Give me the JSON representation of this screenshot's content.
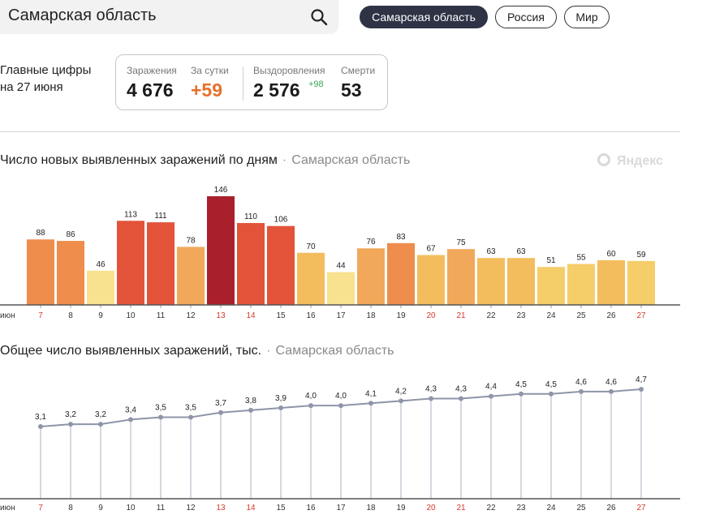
{
  "search": {
    "value": "Самарская область"
  },
  "region_tabs": [
    {
      "label": "Самарская область",
      "active": true
    },
    {
      "label": "Россия",
      "active": false
    },
    {
      "label": "Мир",
      "active": false
    }
  ],
  "summary": {
    "heading_line1": "Главные цифры",
    "heading_line2": "на 27 июня",
    "cases_label": "Заражения",
    "cases_value": "4 676",
    "daily_label": "За сутки",
    "daily_value": "+59",
    "recovered_label": "Выздоровления",
    "recovered_value": "2 576",
    "recovered_delta": "+98",
    "deaths_label": "Смерти",
    "deaths_value": "53"
  },
  "daily_chart": {
    "title": "Число новых выявленных заражений по дням",
    "region": "Самарская область",
    "watermark": "Яндекс"
  },
  "cumulative_chart": {
    "title": "Общее число выявленных заражений, тыс.",
    "region": "Самарская область"
  },
  "colors": {
    "accent_orange": "#e5702a",
    "weekend_red": "#d43a2a",
    "line": "#8e95a8",
    "active_tab": "#2e3446"
  },
  "chart_data": [
    {
      "type": "bar",
      "title": "Число новых выявленных заражений по дням",
      "month_label": "июн",
      "categories": [
        "7",
        "8",
        "9",
        "10",
        "11",
        "12",
        "13",
        "14",
        "15",
        "16",
        "17",
        "18",
        "19",
        "20",
        "21",
        "22",
        "23",
        "24",
        "25",
        "26",
        "27"
      ],
      "values": [
        88,
        86,
        46,
        113,
        111,
        78,
        146,
        110,
        106,
        70,
        44,
        76,
        83,
        67,
        75,
        63,
        63,
        51,
        55,
        60,
        59
      ],
      "weekend_days": [
        "7",
        "13",
        "14",
        "20",
        "21",
        "27"
      ],
      "ylim": [
        0,
        146
      ],
      "grid": false
    },
    {
      "type": "line",
      "title": "Общее число выявленных заражений, тыс.",
      "month_label": "июн",
      "categories": [
        "7",
        "8",
        "9",
        "10",
        "11",
        "12",
        "13",
        "14",
        "15",
        "16",
        "17",
        "18",
        "19",
        "20",
        "21",
        "22",
        "23",
        "24",
        "25",
        "26",
        "27"
      ],
      "values": [
        3.1,
        3.2,
        3.2,
        3.4,
        3.5,
        3.5,
        3.7,
        3.8,
        3.9,
        4.0,
        4.0,
        4.1,
        4.2,
        4.3,
        4.3,
        4.4,
        4.5,
        4.5,
        4.6,
        4.6,
        4.7
      ],
      "value_labels": [
        "3,1",
        "3,2",
        "3,2",
        "3,4",
        "3,5",
        "3,5",
        "3,7",
        "3,8",
        "3,9",
        "4,0",
        "4,0",
        "4,1",
        "4,2",
        "4,3",
        "4,3",
        "4,4",
        "4,5",
        "4,5",
        "4,6",
        "4,6",
        "4,7"
      ],
      "weekend_days": [
        "7",
        "13",
        "14",
        "20",
        "21",
        "27"
      ],
      "grid": false
    }
  ]
}
